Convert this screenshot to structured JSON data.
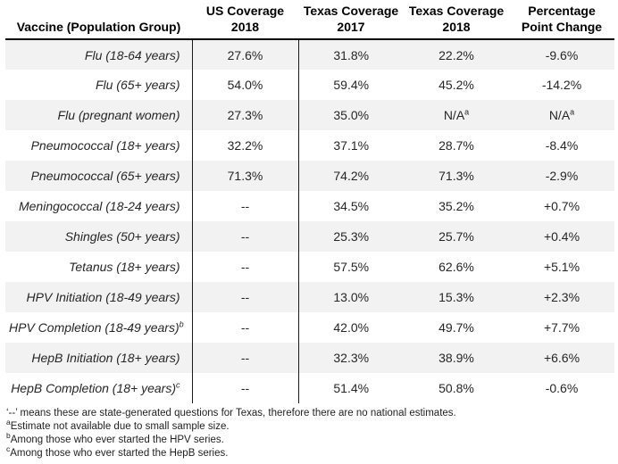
{
  "colors": {
    "row_stripe": "#f2f2f2",
    "rule": "#000000"
  },
  "header": {
    "columns": [
      {
        "line1": "Vaccine (Population Group)",
        "line2": ""
      },
      {
        "line1": "US Coverage",
        "line2": "2018"
      },
      {
        "line1": "Texas Coverage",
        "line2": "2017"
      },
      {
        "line1": "Texas Coverage",
        "line2": "2018"
      },
      {
        "line1": "Percentage",
        "line2": "Point Change"
      }
    ]
  },
  "rows": [
    {
      "label": "Flu (18-64 years)",
      "label_sup": "",
      "us": "27.6%",
      "t17": "31.8%",
      "t18": "22.2%",
      "t18_sup": "",
      "chg": "-9.6%",
      "chg_sup": ""
    },
    {
      "label": "Flu (65+ years)",
      "label_sup": "",
      "us": "54.0%",
      "t17": "59.4%",
      "t18": "45.2%",
      "t18_sup": "",
      "chg": "-14.2%",
      "chg_sup": ""
    },
    {
      "label": "Flu (pregnant women)",
      "label_sup": "",
      "us": "27.3%",
      "t17": "35.0%",
      "t18": "N/A",
      "t18_sup": "a",
      "chg": "N/A",
      "chg_sup": "a"
    },
    {
      "label": "Pneumococcal (18+ years)",
      "label_sup": "",
      "us": "32.2%",
      "t17": "37.1%",
      "t18": "28.7%",
      "t18_sup": "",
      "chg": "-8.4%",
      "chg_sup": ""
    },
    {
      "label": "Pneumococcal (65+ years)",
      "label_sup": "",
      "us": "71.3%",
      "t17": "74.2%",
      "t18": "71.3%",
      "t18_sup": "",
      "chg": "-2.9%",
      "chg_sup": ""
    },
    {
      "label": "Meningococcal (18-24 years)",
      "label_sup": "",
      "us": "--",
      "t17": "34.5%",
      "t18": "35.2%",
      "t18_sup": "",
      "chg": "+0.7%",
      "chg_sup": ""
    },
    {
      "label": "Shingles (50+ years)",
      "label_sup": "",
      "us": "--",
      "t17": "25.3%",
      "t18": "25.7%",
      "t18_sup": "",
      "chg": "+0.4%",
      "chg_sup": ""
    },
    {
      "label": "Tetanus (18+ years)",
      "label_sup": "",
      "us": "--",
      "t17": "57.5%",
      "t18": "62.6%",
      "t18_sup": "",
      "chg": "+5.1%",
      "chg_sup": ""
    },
    {
      "label": "HPV Initiation (18-49 years)",
      "label_sup": "",
      "us": "--",
      "t17": "13.0%",
      "t18": "15.3%",
      "t18_sup": "",
      "chg": "+2.3%",
      "chg_sup": ""
    },
    {
      "label": "HPV Completion (18-49 years)",
      "label_sup": "b",
      "us": "--",
      "t17": "42.0%",
      "t18": "49.7%",
      "t18_sup": "",
      "chg": "+7.7%",
      "chg_sup": ""
    },
    {
      "label": "HepB Initiation (18+ years)",
      "label_sup": "",
      "us": "--",
      "t17": "32.3%",
      "t18": "38.9%",
      "t18_sup": "",
      "chg": "+6.6%",
      "chg_sup": ""
    },
    {
      "label": "HepB Completion (18+ years)",
      "label_sup": "c",
      "us": "--",
      "t17": "51.4%",
      "t18": "50.8%",
      "t18_sup": "",
      "chg": "-0.6%",
      "chg_sup": ""
    }
  ],
  "footnotes": [
    {
      "sup": "",
      "text": "‘--’ means these are state-generated questions for Texas, therefore there are no national estimates."
    },
    {
      "sup": "a",
      "text": "Estimate not available due to small sample size."
    },
    {
      "sup": "b",
      "text": "Among those who ever started the HPV series."
    },
    {
      "sup": "c",
      "text": "Among those who ever started the HepB series."
    }
  ]
}
